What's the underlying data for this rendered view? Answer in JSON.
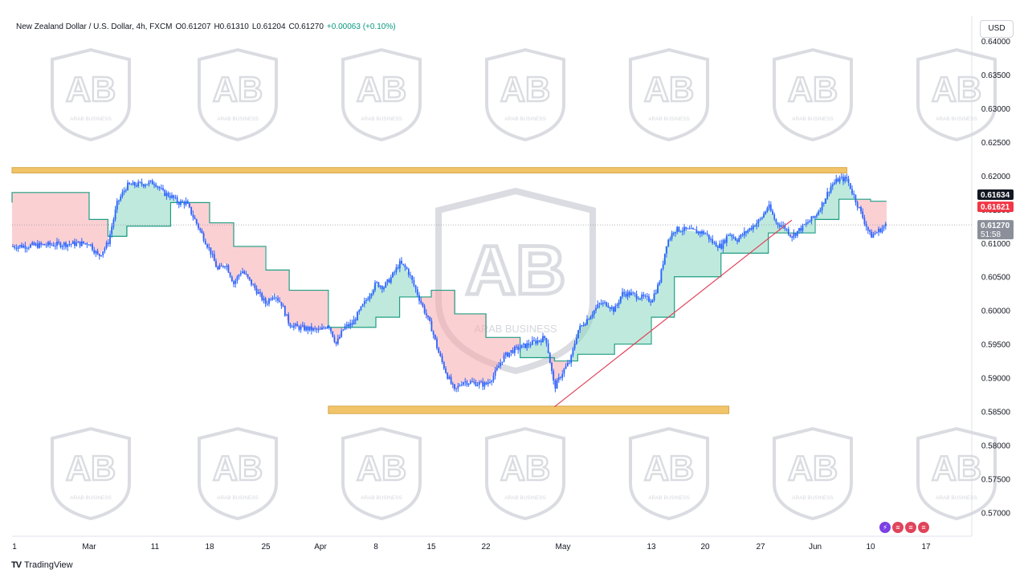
{
  "header": {
    "symbol": "New Zealand Dollar / U.S. Dollar, 4h, FXCM",
    "open": "O0.61207",
    "high": "H0.61310",
    "low": "L0.61204",
    "close": "C0.61270",
    "change": "+0.00063 (+0.10%)"
  },
  "currency_button": "USD",
  "footer": {
    "brand": "TradingView",
    "logo_text": "TV"
  },
  "watermark_text": "ARAB BUSINESS",
  "colors": {
    "candle": "#2962ff",
    "zone_fill": "#f2c46a",
    "zone_stroke": "#d6a645",
    "trendline": "#e0445a",
    "bear_cloud": "#f7a9ae",
    "bull_cloud": "#8bd7c0",
    "grid": "#f0f3fa",
    "last_price_bg": "#8a8f99",
    "red_label_bg": "#f23645",
    "black_label_bg": "#131722"
  },
  "chart_data": {
    "type": "candlestick",
    "y_axis": {
      "range": [
        0.5665,
        0.6407
      ],
      "ticks": [
        "0.64000",
        "0.63500",
        "0.63000",
        "0.62500",
        "0.62000",
        "0.61500",
        "0.61000",
        "0.60500",
        "0.60000",
        "0.59500",
        "0.59000",
        "0.58500",
        "0.58000",
        "0.57500",
        "0.57000"
      ]
    },
    "x_axis": {
      "ticks": [
        "1",
        "Mar",
        "11",
        "18",
        "25",
        "Apr",
        "8",
        "15",
        "22",
        "May",
        "13",
        "20",
        "27",
        "Jun",
        "10",
        "17"
      ]
    },
    "price_labels": [
      {
        "value": 0.61634,
        "text": "0.61634",
        "style": "black"
      },
      {
        "value": 0.61621,
        "text": "0.61621",
        "style": "red"
      },
      {
        "value": 0.6127,
        "text": "0.61270",
        "style": "gray",
        "sub": "51:58"
      }
    ],
    "last_price": 0.6127,
    "zones": [
      {
        "name": "resistance-zone",
        "y_top": 0.6212,
        "y_bottom": 0.6204,
        "x_start": "2024-02-22",
        "x_end": "2024-06-07"
      },
      {
        "name": "support-zone",
        "y_top": 0.5858,
        "y_bottom": 0.5847,
        "x_start": "2024-04-02",
        "x_end": "2024-05-23"
      }
    ],
    "trendline": {
      "from": {
        "date": "2024-04-30",
        "value": 0.5857
      },
      "to": {
        "date": "2024-05-31",
        "value": 0.6134
      }
    },
    "series": [
      {
        "values": [
          [
            "2024-02-22",
            0.6185
          ],
          [
            "2024-02-23",
            0.6205
          ],
          [
            "2024-02-26",
            0.6172
          ],
          [
            "2024-02-27",
            0.615
          ],
          [
            "2024-02-28",
            0.609
          ],
          [
            "2024-02-29",
            0.6085
          ],
          [
            "2024-03-01",
            0.6095
          ],
          [
            "2024-03-04",
            0.61
          ],
          [
            "2024-03-05",
            0.608
          ],
          [
            "2024-03-06",
            0.61
          ],
          [
            "2024-03-07",
            0.616
          ],
          [
            "2024-03-08",
            0.6185
          ],
          [
            "2024-03-11",
            0.619
          ],
          [
            "2024-03-12",
            0.6175
          ],
          [
            "2024-03-13",
            0.617
          ],
          [
            "2024-03-14",
            0.616
          ],
          [
            "2024-03-15",
            0.616
          ],
          [
            "2024-03-18",
            0.609
          ],
          [
            "2024-03-19",
            0.606
          ],
          [
            "2024-03-20",
            0.607
          ],
          [
            "2024-03-21",
            0.604
          ],
          [
            "2024-03-22",
            0.606
          ],
          [
            "2024-03-25",
            0.601
          ],
          [
            "2024-03-26",
            0.6025
          ],
          [
            "2024-03-27",
            0.601
          ],
          [
            "2024-03-28",
            0.598
          ],
          [
            "2024-03-29",
            0.5975
          ],
          [
            "2024-04-01",
            0.597
          ],
          [
            "2024-04-02",
            0.598
          ],
          [
            "2024-04-03",
            0.595
          ],
          [
            "2024-04-04",
            0.5975
          ],
          [
            "2024-04-05",
            0.598
          ],
          [
            "2024-04-08",
            0.604
          ],
          [
            "2024-04-09",
            0.6035
          ],
          [
            "2024-04-10",
            0.605
          ],
          [
            "2024-04-11",
            0.607
          ],
          [
            "2024-04-12",
            0.606
          ],
          [
            "2024-04-15",
            0.5975
          ],
          [
            "2024-04-16",
            0.5935
          ],
          [
            "2024-04-17",
            0.5905
          ],
          [
            "2024-04-18",
            0.588
          ],
          [
            "2024-04-19",
            0.5895
          ],
          [
            "2024-04-22",
            0.589
          ],
          [
            "2024-04-23",
            0.5905
          ],
          [
            "2024-04-24",
            0.593
          ],
          [
            "2024-04-25",
            0.594
          ],
          [
            "2024-04-26",
            0.5945
          ],
          [
            "2024-04-29",
            0.596
          ],
          [
            "2024-04-30",
            0.5885
          ],
          [
            "2024-05-01",
            0.591
          ],
          [
            "2024-05-02",
            0.5925
          ],
          [
            "2024-05-03",
            0.597
          ],
          [
            "2024-05-06",
            0.601
          ],
          [
            "2024-05-07",
            0.601
          ],
          [
            "2024-05-08",
            0.6
          ],
          [
            "2024-05-09",
            0.6025
          ],
          [
            "2024-05-10",
            0.6025
          ],
          [
            "2024-05-13",
            0.6015
          ],
          [
            "2024-05-14",
            0.604
          ],
          [
            "2024-05-15",
            0.61
          ],
          [
            "2024-05-16",
            0.612
          ],
          [
            "2024-05-17",
            0.612
          ],
          [
            "2024-05-20",
            0.6115
          ],
          [
            "2024-05-21",
            0.61
          ],
          [
            "2024-05-22",
            0.6095
          ],
          [
            "2024-05-23",
            0.6115
          ],
          [
            "2024-05-24",
            0.6105
          ],
          [
            "2024-05-27",
            0.6135
          ],
          [
            "2024-05-28",
            0.6155
          ],
          [
            "2024-05-29",
            0.613
          ],
          [
            "2024-05-30",
            0.6125
          ],
          [
            "2024-05-31",
            0.611
          ],
          [
            "2024-06-03",
            0.614
          ],
          [
            "2024-06-04",
            0.616
          ],
          [
            "2024-06-05",
            0.6185
          ],
          [
            "2024-06-06",
            0.6195
          ],
          [
            "2024-06-07",
            0.6195
          ],
          [
            "2024-06-10",
            0.611
          ],
          [
            "2024-06-11",
            0.6118
          ],
          [
            "2024-06-12",
            0.6127
          ]
        ]
      }
    ],
    "ma_band": {
      "values": [
        [
          "2024-02-22",
          0.616
        ],
        [
          "2024-02-26",
          0.6175
        ],
        [
          "2024-03-04",
          0.6135
        ],
        [
          "2024-03-06",
          0.611
        ],
        [
          "2024-03-08",
          0.6125
        ],
        [
          "2024-03-13",
          0.616
        ],
        [
          "2024-03-18",
          0.613
        ],
        [
          "2024-03-21",
          0.6095
        ],
        [
          "2024-03-25",
          0.606
        ],
        [
          "2024-03-28",
          0.603
        ],
        [
          "2024-04-02",
          0.5975
        ],
        [
          "2024-04-08",
          0.599
        ],
        [
          "2024-04-11",
          0.602
        ],
        [
          "2024-04-15",
          0.603
        ],
        [
          "2024-04-18",
          0.5995
        ],
        [
          "2024-04-22",
          0.596
        ],
        [
          "2024-04-26",
          0.593
        ],
        [
          "2024-04-30",
          0.5925
        ],
        [
          "2024-05-03",
          0.5935
        ],
        [
          "2024-05-08",
          0.595
        ],
        [
          "2024-05-13",
          0.599
        ],
        [
          "2024-05-16",
          0.605
        ],
        [
          "2024-05-22",
          0.6085
        ],
        [
          "2024-05-28",
          0.6115
        ],
        [
          "2024-06-03",
          0.6135
        ],
        [
          "2024-06-06",
          0.6165
        ],
        [
          "2024-06-10",
          0.6162
        ],
        [
          "2024-06-12",
          0.6162
        ]
      ]
    }
  }
}
